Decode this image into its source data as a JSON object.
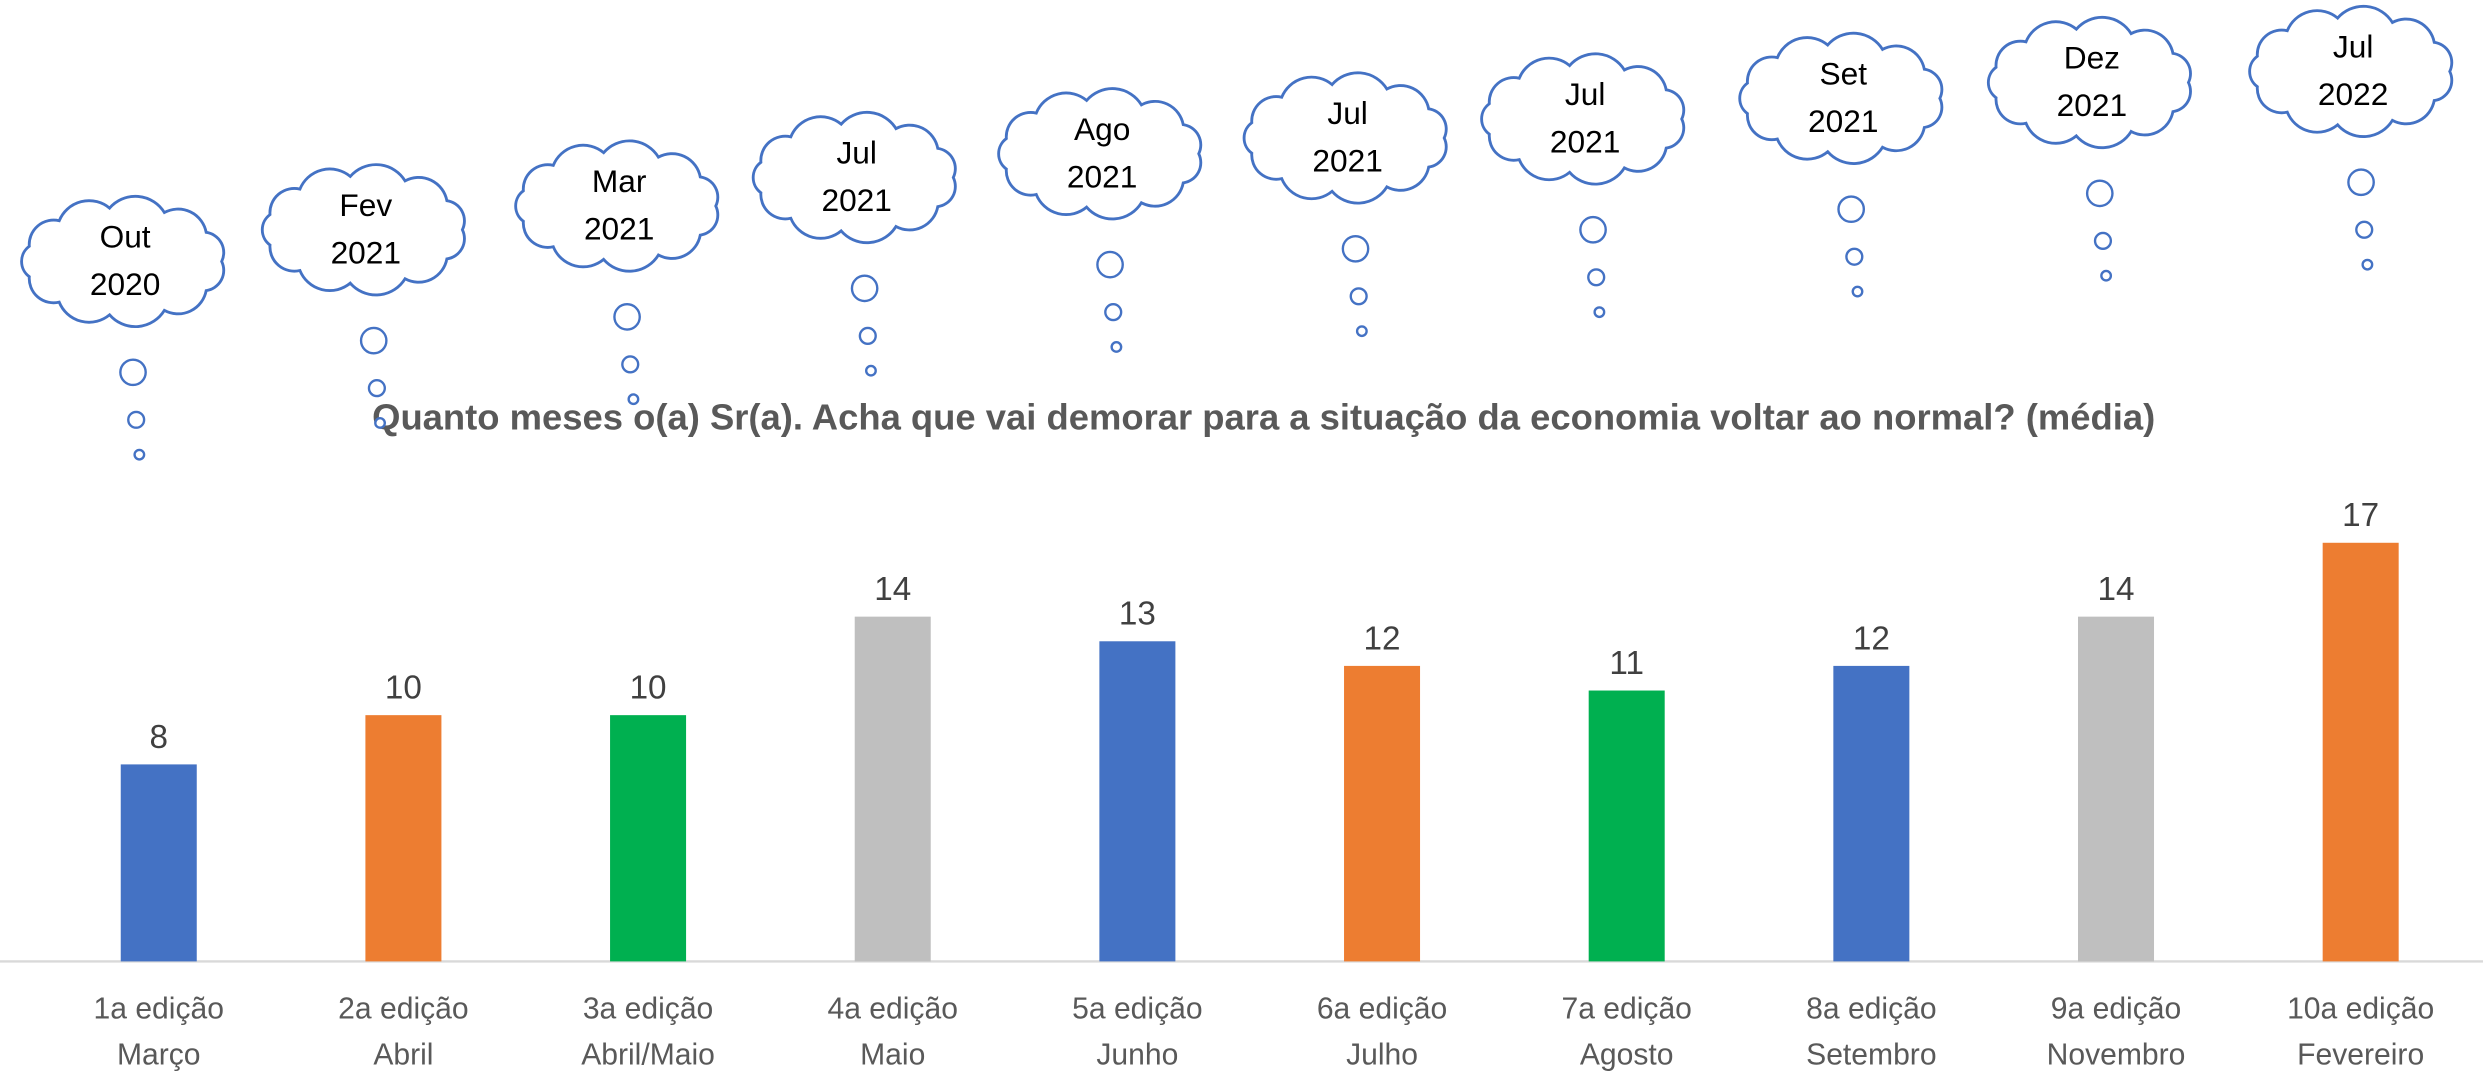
{
  "chart_data": {
    "type": "bar",
    "title": "Quanto meses o(a) Sr(a). Acha que vai demorar para a situação da economia voltar ao normal? (média)",
    "categories": [
      [
        "1a edição",
        "Março"
      ],
      [
        "2a edição",
        "Abril"
      ],
      [
        "3a edição",
        "Abril/Maio"
      ],
      [
        "4a edição",
        "Maio"
      ],
      [
        "5a edição",
        "Junho"
      ],
      [
        "6a edição",
        "Julho"
      ],
      [
        "7a edição",
        "Agosto"
      ],
      [
        "8a edição",
        "Setembro"
      ],
      [
        "9a edição",
        "Novembro"
      ],
      [
        "10a edição",
        "Fevereiro"
      ]
    ],
    "values": [
      8,
      10,
      10,
      14,
      13,
      12,
      11,
      12,
      14,
      17
    ],
    "colors": [
      "#4472c4",
      "#ed7d31",
      "#00b050",
      "#bfbfbf",
      "#4472c4",
      "#ed7d31",
      "#00b050",
      "#4472c4",
      "#bfbfbf",
      "#ed7d31"
    ],
    "annotations": [
      [
        "Out",
        "2020"
      ],
      [
        "Fev",
        "2021"
      ],
      [
        "Mar",
        "2021"
      ],
      [
        "Jul",
        "2021"
      ],
      [
        "Ago",
        "2021"
      ],
      [
        "Jul",
        "2021"
      ],
      [
        "Jul",
        "2021"
      ],
      [
        "Set",
        "2021"
      ],
      [
        "Dez",
        "2021"
      ],
      [
        "Jul",
        "2022"
      ]
    ],
    "ylim": [
      0,
      20
    ]
  }
}
